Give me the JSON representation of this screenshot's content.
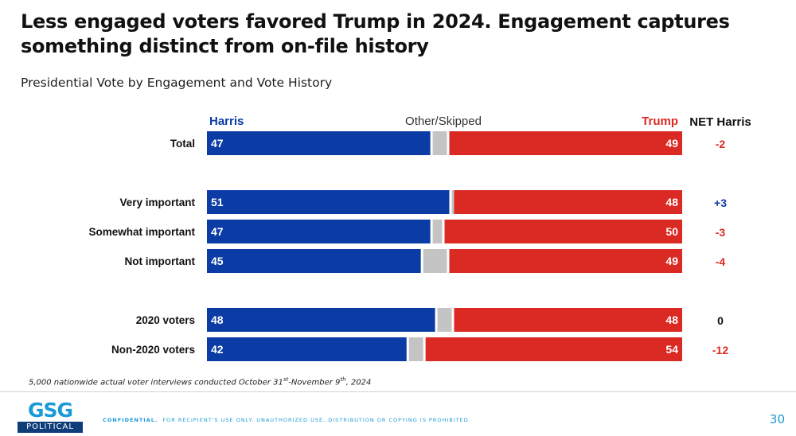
{
  "title": "Less engaged voters favored Trump in 2024. Engagement captures something distinct from on-file history",
  "subtitle": "Presidential Vote by Engagement and Vote History",
  "chart_data": {
    "type": "stacked_bar",
    "orientation": "horizontal",
    "headers": {
      "harris": "Harris",
      "other": "Other/Skipped",
      "trump": "Trump",
      "net": "NET Harris"
    },
    "colors": {
      "harris": "#0b3ba4",
      "other": "#c4c4c4",
      "trump": "#db2a23",
      "net_positive": "#0b3ba4",
      "net_negative": "#db2a23",
      "net_zero": "#111111"
    },
    "rows": [
      {
        "label": "Total",
        "harris": 47,
        "trump": 49,
        "net": "-2",
        "group": 0
      },
      {
        "label": "Very important",
        "harris": 51,
        "trump": 48,
        "net": "+3",
        "group": 1
      },
      {
        "label": "Somewhat important",
        "harris": 47,
        "trump": 50,
        "net": "-3",
        "group": 1
      },
      {
        "label": "Not important",
        "harris": 45,
        "trump": 49,
        "net": "-4",
        "group": 1
      },
      {
        "label": "2020 voters",
        "harris": 48,
        "trump": 48,
        "net": "0",
        "group": 2
      },
      {
        "label": "Non-2020 voters",
        "harris": 42,
        "trump": 54,
        "net": "-12",
        "group": 2
      }
    ]
  },
  "footnote": {
    "prefix": "5,000 nationwide actual voter interviews conducted October 31",
    "sup1": "st",
    "middle": "-November 9",
    "sup2": "th",
    "suffix": ", 2024"
  },
  "footer": {
    "logo_top": "GSG",
    "logo_bottom": "POLITICAL",
    "confidential_label": "CONFIDENTIAL.",
    "confidential_text": "FOR RECIPIENT'S USE ONLY. UNAUTHORIZED USE, DISTRIBUTION OR COPYING IS PROHIBITED.",
    "page_number": "30"
  }
}
